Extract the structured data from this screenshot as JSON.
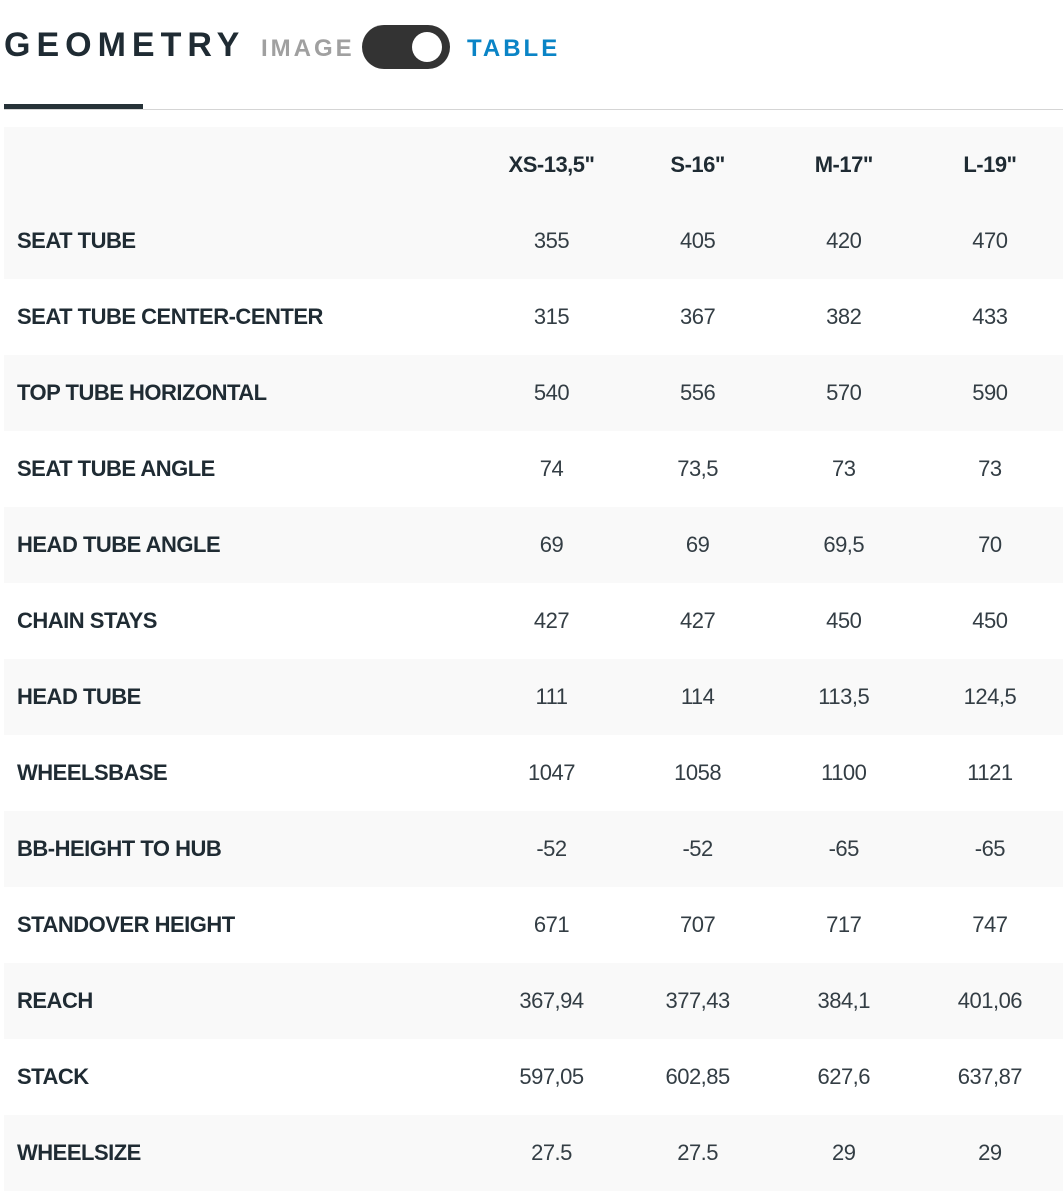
{
  "header": {
    "title": "GEOMETRY",
    "option_image": "IMAGE",
    "option_table": "TABLE",
    "toggle_state": "table"
  },
  "colors": {
    "accent": "#0a84c6",
    "toggle": "#333333",
    "row_alt": "#f9f9f9"
  },
  "table": {
    "columns": [
      "",
      "XS-13,5\"",
      "S-16\"",
      "M-17\"",
      "L-19\""
    ],
    "rows": [
      {
        "label": "SEAT TUBE",
        "values": [
          "355",
          "405",
          "420",
          "470"
        ]
      },
      {
        "label": "SEAT TUBE CENTER-CENTER",
        "values": [
          "315",
          "367",
          "382",
          "433"
        ]
      },
      {
        "label": "TOP TUBE HORIZONTAL",
        "values": [
          "540",
          "556",
          "570",
          "590"
        ]
      },
      {
        "label": "SEAT TUBE ANGLE",
        "values": [
          "74",
          "73,5",
          "73",
          "73"
        ]
      },
      {
        "label": "HEAD TUBE ANGLE",
        "values": [
          "69",
          "69",
          "69,5",
          "70"
        ]
      },
      {
        "label": "CHAIN STAYS",
        "values": [
          "427",
          "427",
          "450",
          "450"
        ]
      },
      {
        "label": "HEAD TUBE",
        "values": [
          "111",
          "114",
          "113,5",
          "124,5"
        ]
      },
      {
        "label": "WHEELSBASE",
        "values": [
          "1047",
          "1058",
          "1100",
          "1121"
        ]
      },
      {
        "label": "BB-HEIGHT TO HUB",
        "values": [
          "-52",
          "-52",
          "-65",
          "-65"
        ]
      },
      {
        "label": "STANDOVER HEIGHT",
        "values": [
          "671",
          "707",
          "717",
          "747"
        ]
      },
      {
        "label": "REACH",
        "values": [
          "367,94",
          "377,43",
          "384,1",
          "401,06"
        ]
      },
      {
        "label": "STACK",
        "values": [
          "597,05",
          "602,85",
          "627,6",
          "637,87"
        ]
      },
      {
        "label": "WHEELSIZE",
        "values": [
          "27.5",
          "27.5",
          "29",
          "29"
        ]
      }
    ]
  }
}
